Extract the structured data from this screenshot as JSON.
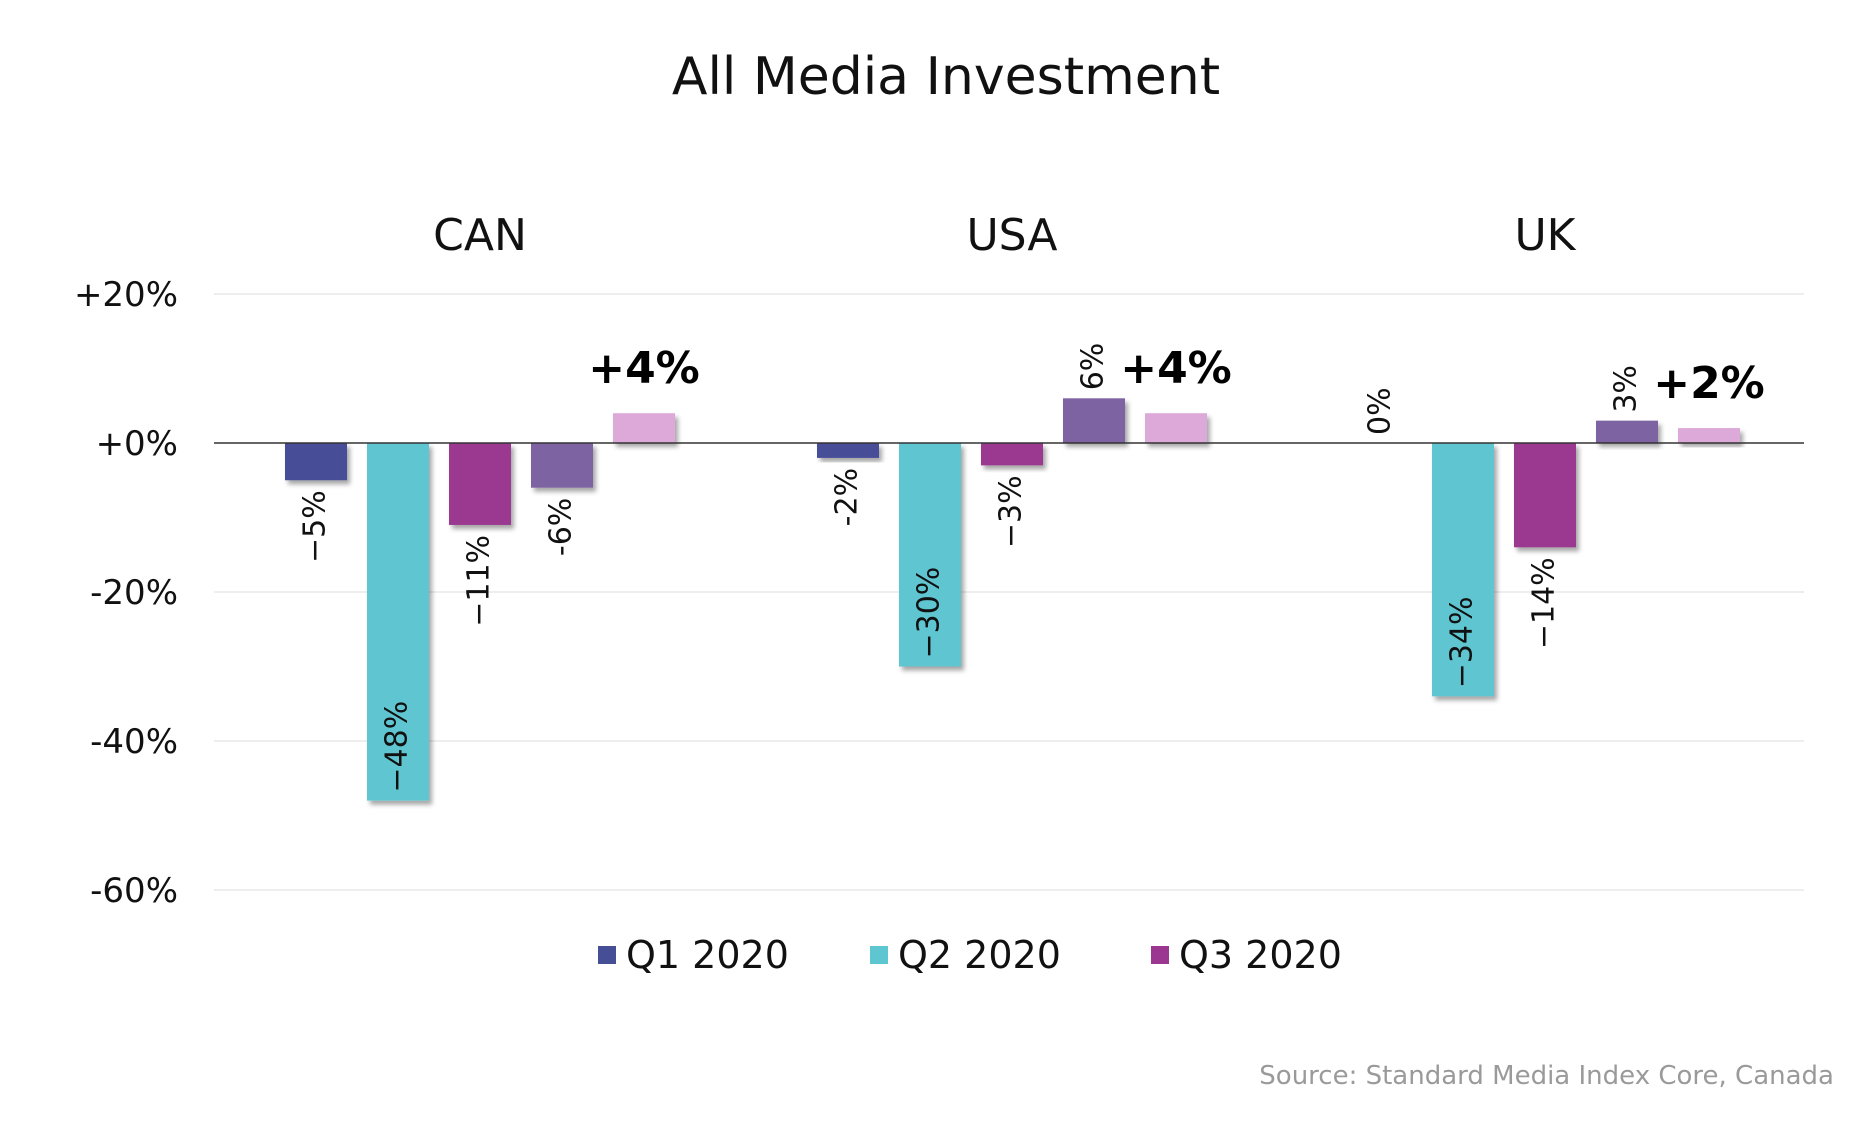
{
  "chart_data": {
    "type": "bar",
    "title": "All Media Investment",
    "groups": [
      "CAN",
      "USA",
      "UK"
    ],
    "y_ticks": [
      "+20%",
      "+0%",
      "-20%",
      "-40%",
      "-60%"
    ],
    "y_tick_values": [
      20,
      0,
      -20,
      -40,
      -60
    ],
    "ylim": [
      -60,
      20
    ],
    "grid": true,
    "legend_position": "bottom",
    "legend": [
      {
        "name": "Q1 2020",
        "color": "#464e96"
      },
      {
        "name": "Q2 2020",
        "color": "#5ec6d1"
      },
      {
        "name": "Q3 2020",
        "color": "#9b3790"
      }
    ],
    "bars": [
      {
        "group": "CAN",
        "value": -5,
        "label": "−5%",
        "color": "#464e96"
      },
      {
        "group": "CAN",
        "value": -48,
        "label": "−48%",
        "color": "#5ec6d1"
      },
      {
        "group": "CAN",
        "value": -11,
        "label": "−11%",
        "color": "#9b3790"
      },
      {
        "group": "CAN",
        "value": -6,
        "label": "-6%",
        "color": "#7e64a3"
      },
      {
        "group": "CAN",
        "value": 4,
        "label": "+4%",
        "color": "#dca9d8",
        "highlight": true
      },
      {
        "group": "USA",
        "value": -2,
        "label": "-2%",
        "color": "#464e96"
      },
      {
        "group": "USA",
        "value": -30,
        "label": "−30%",
        "color": "#5ec6d1"
      },
      {
        "group": "USA",
        "value": -3,
        "label": "−3%",
        "color": "#9b3790"
      },
      {
        "group": "USA",
        "value": 6,
        "label": "6%",
        "color": "#7e64a3"
      },
      {
        "group": "USA",
        "value": 4,
        "label": "+4%",
        "color": "#dca9d8",
        "highlight": true
      },
      {
        "group": "UK",
        "value": 0,
        "label": "0%",
        "color": "#464e96"
      },
      {
        "group": "UK",
        "value": -34,
        "label": "−34%",
        "color": "#5ec6d1"
      },
      {
        "group": "UK",
        "value": -14,
        "label": "−14%",
        "color": "#9b3790"
      },
      {
        "group": "UK",
        "value": 3,
        "label": "3%",
        "color": "#7e64a3"
      },
      {
        "group": "UK",
        "value": 2,
        "label": "+2%",
        "color": "#dca9d8",
        "highlight": true
      }
    ]
  },
  "source": "Source: Standard Media Index Core, Canada"
}
